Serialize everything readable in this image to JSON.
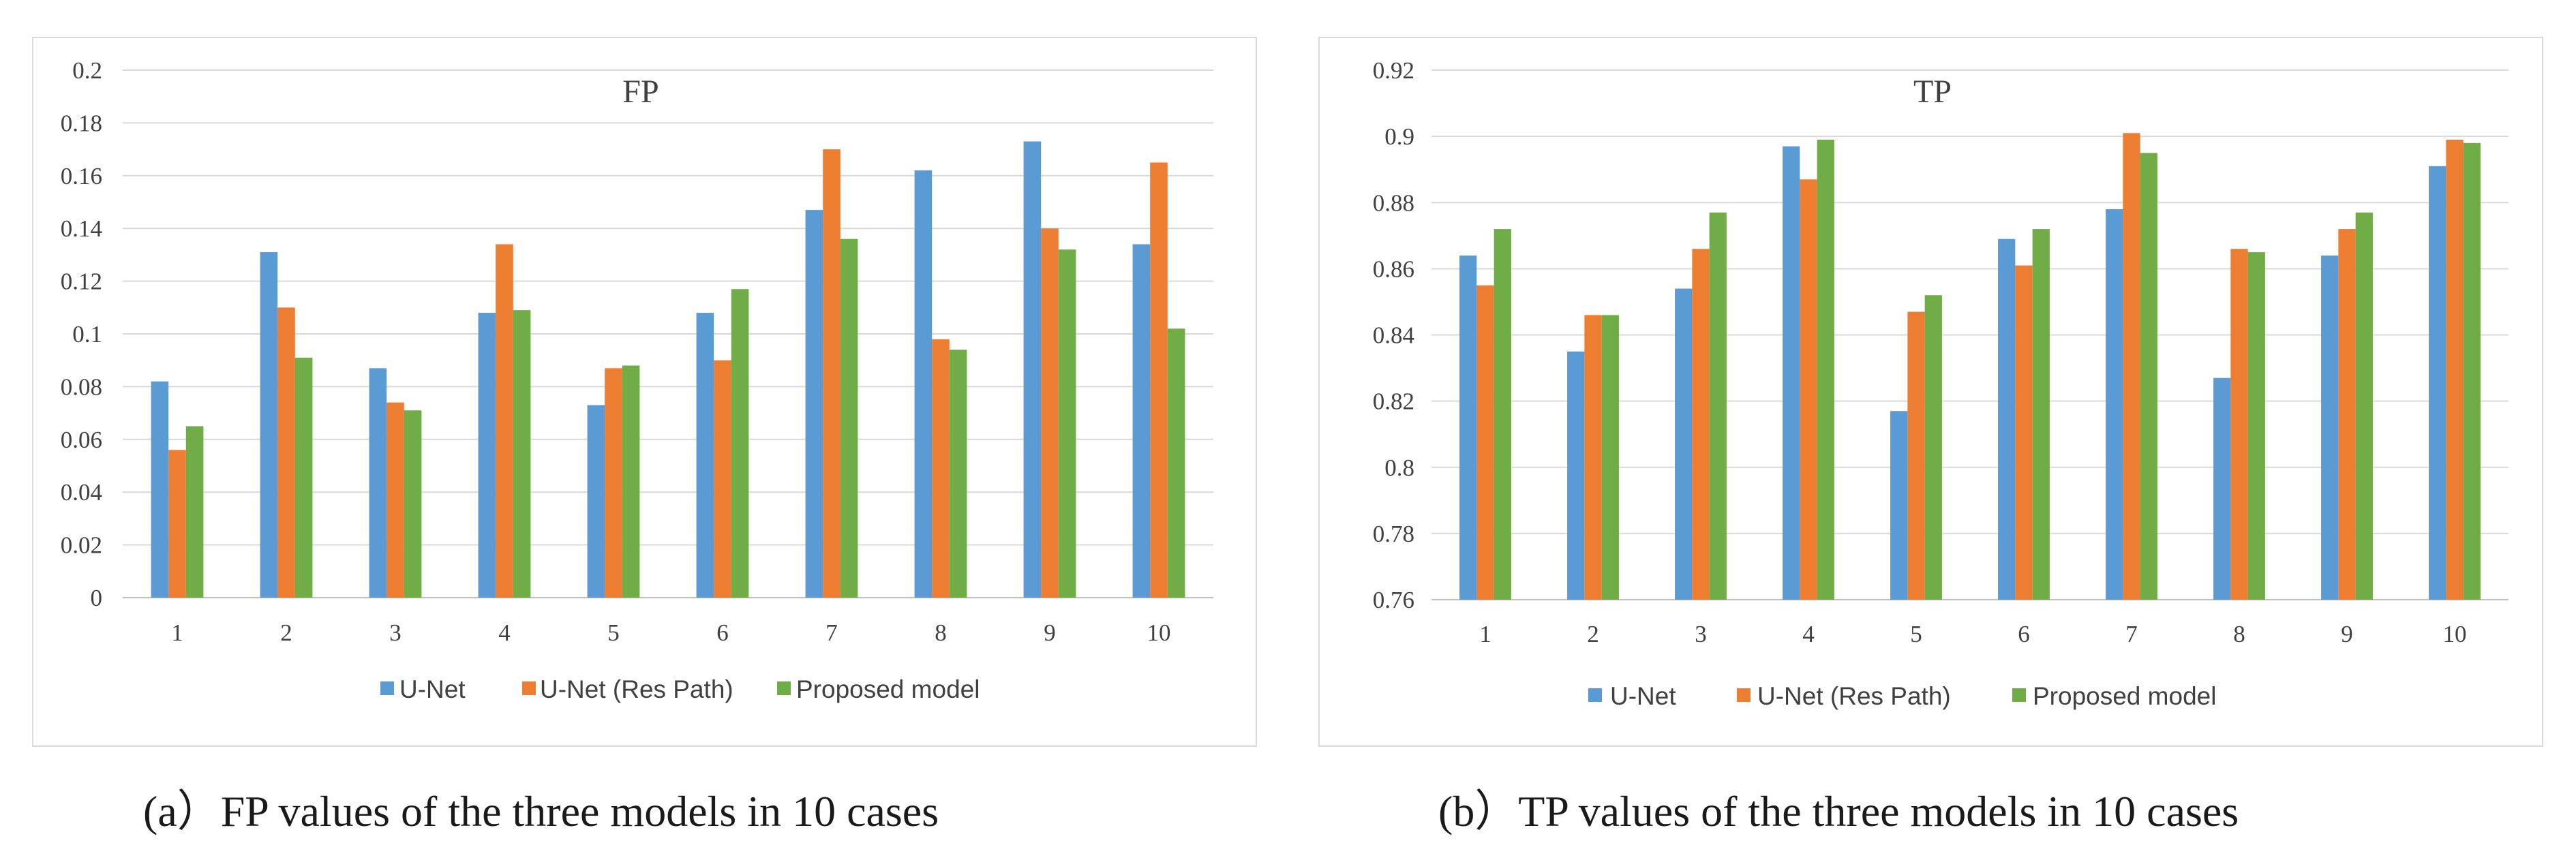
{
  "colors": {
    "U-Net": "#5b9bd5",
    "U-Net (Res Path)": "#ed7d31",
    "Proposed model": "#70ad47"
  },
  "legend": [
    "U-Net",
    "U-Net (Res Path)",
    "Proposed model"
  ],
  "captions": {
    "a": "(a）FP values of the three models in 10 cases",
    "b": "(b）TP values of the three models in 10 cases"
  },
  "chart_data": [
    {
      "id": "fp",
      "type": "bar",
      "title": "FP",
      "categories": [
        "1",
        "2",
        "3",
        "4",
        "5",
        "6",
        "7",
        "8",
        "9",
        "10"
      ],
      "ylim": [
        0,
        0.2
      ],
      "ytick_step": 0.02,
      "ytick_labels": [
        "0",
        "0.02",
        "0.04",
        "0.06",
        "0.08",
        "0.1",
        "0.12",
        "0.14",
        "0.16",
        "0.18",
        "0.2"
      ],
      "grid": true,
      "legend_position": "bottom",
      "series": [
        {
          "name": "U-Net",
          "values": [
            0.082,
            0.131,
            0.087,
            0.108,
            0.073,
            0.108,
            0.147,
            0.162,
            0.173,
            0.134
          ]
        },
        {
          "name": "U-Net (Res Path)",
          "values": [
            0.056,
            0.11,
            0.074,
            0.134,
            0.087,
            0.09,
            0.17,
            0.098,
            0.14,
            0.165
          ]
        },
        {
          "name": "Proposed model",
          "values": [
            0.065,
            0.091,
            0.071,
            0.109,
            0.088,
            0.117,
            0.136,
            0.094,
            0.132,
            0.102
          ]
        }
      ]
    },
    {
      "id": "tp",
      "type": "bar",
      "title": "TP",
      "categories": [
        "1",
        "2",
        "3",
        "4",
        "5",
        "6",
        "7",
        "8",
        "9",
        "10"
      ],
      "ylim": [
        0.76,
        0.92
      ],
      "ytick_step": 0.02,
      "ytick_labels": [
        "0.76",
        "0.78",
        "0.8",
        "0.82",
        "0.84",
        "0.86",
        "0.88",
        "0.9",
        "0.92"
      ],
      "grid": true,
      "legend_position": "bottom",
      "series": [
        {
          "name": "U-Net",
          "values": [
            0.864,
            0.835,
            0.854,
            0.897,
            0.817,
            0.869,
            0.878,
            0.827,
            0.864,
            0.891
          ]
        },
        {
          "name": "U-Net (Res Path)",
          "values": [
            0.855,
            0.846,
            0.866,
            0.887,
            0.847,
            0.861,
            0.901,
            0.866,
            0.872,
            0.899
          ]
        },
        {
          "name": "Proposed model",
          "values": [
            0.872,
            0.846,
            0.877,
            0.899,
            0.852,
            0.872,
            0.895,
            0.865,
            0.877,
            0.898
          ]
        }
      ]
    }
  ]
}
